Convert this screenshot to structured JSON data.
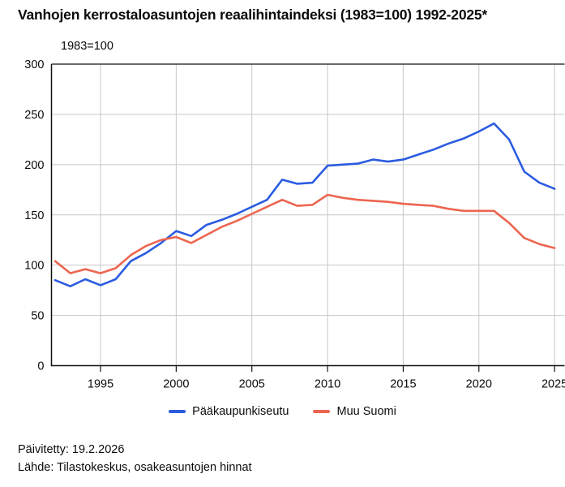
{
  "title": "Vanhojen kerrostaloasuntojen reaalihintaindeksi (1983=100) 1992-2025*",
  "axis_unit_label": "1983=100",
  "footer": {
    "updated": "Päivitetty: 19.2.2026",
    "source": "Lähde: Tilastokeskus, osakeasuntojen hinnat"
  },
  "colors": {
    "axis": "#111111",
    "grid": "#c7c7c7",
    "text": "#0b0b0b",
    "helsinki_blue": "#2b5ce0",
    "other_red": "#ec6550"
  },
  "chart_data": {
    "type": "line",
    "title": "Vanhojen kerrostaloasuntojen reaalihintaindeksi (1983=100) 1992-2025*",
    "subtitle": "1983=100",
    "xlabel": "",
    "ylabel": "1983=100",
    "ylim": [
      0,
      300
    ],
    "yticks": [
      0,
      50,
      100,
      150,
      200,
      250,
      300
    ],
    "xticks": [
      1995,
      2000,
      2005,
      2010,
      2015,
      2020,
      2025
    ],
    "grid": true,
    "legend_position": "bottom",
    "x": [
      1992,
      1993,
      1994,
      1995,
      1996,
      1997,
      1998,
      1999,
      2000,
      2001,
      2002,
      2003,
      2004,
      2005,
      2006,
      2007,
      2008,
      2009,
      2010,
      2011,
      2012,
      2013,
      2014,
      2015,
      2016,
      2017,
      2018,
      2019,
      2020,
      2021,
      2022,
      2023,
      2024,
      2025
    ],
    "series": [
      {
        "name": "Pääkaupunkiseutu",
        "color": "#2b5ce0",
        "values": [
          85,
          79,
          86,
          80,
          86,
          104,
          112,
          122,
          134,
          129,
          140,
          145,
          151,
          158,
          165,
          185,
          181,
          182,
          199,
          200,
          201,
          205,
          203,
          205,
          210,
          215,
          221,
          226,
          233,
          241,
          225,
          193,
          182,
          176
        ]
      },
      {
        "name": "Muu Suomi",
        "color": "#ec6550",
        "values": [
          104,
          92,
          96,
          92,
          97,
          110,
          119,
          125,
          128,
          122,
          130,
          138,
          144,
          151,
          158,
          165,
          159,
          160,
          170,
          167,
          165,
          164,
          163,
          161,
          160,
          159,
          156,
          154,
          154,
          154,
          142,
          127,
          121,
          117
        ]
      }
    ]
  }
}
